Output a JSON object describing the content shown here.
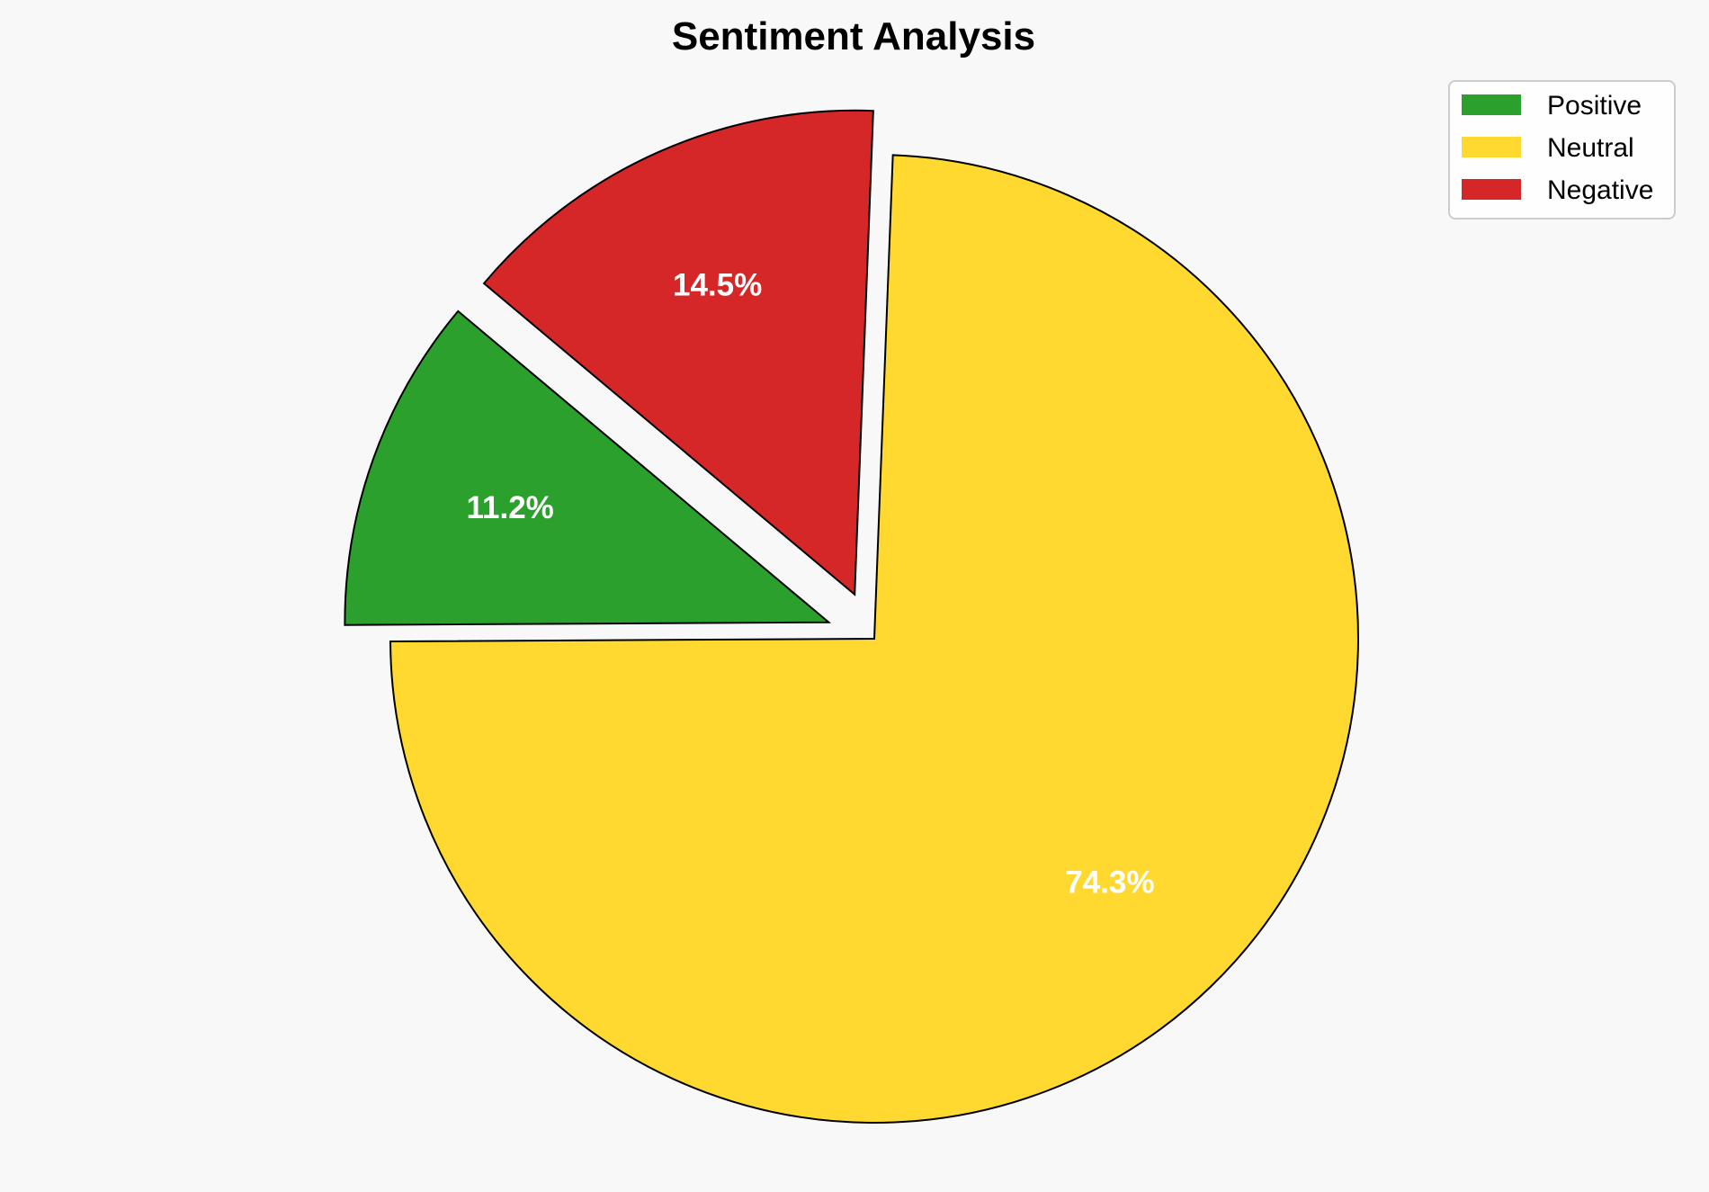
{
  "chart_data": {
    "type": "pie",
    "title": "Sentiment Analysis",
    "categories": [
      "Positive",
      "Neutral",
      "Negative"
    ],
    "values": [
      11.2,
      74.3,
      14.5
    ],
    "labels": [
      "11.2%",
      "74.3%",
      "14.5%"
    ],
    "colors": [
      "#2ca02c",
      "#ffd92f",
      "#d62728"
    ],
    "explode": [
      0.1,
      0,
      0.1
    ],
    "start_angle": 140,
    "legend_position": "top-right",
    "background": "#f8f8f8"
  }
}
